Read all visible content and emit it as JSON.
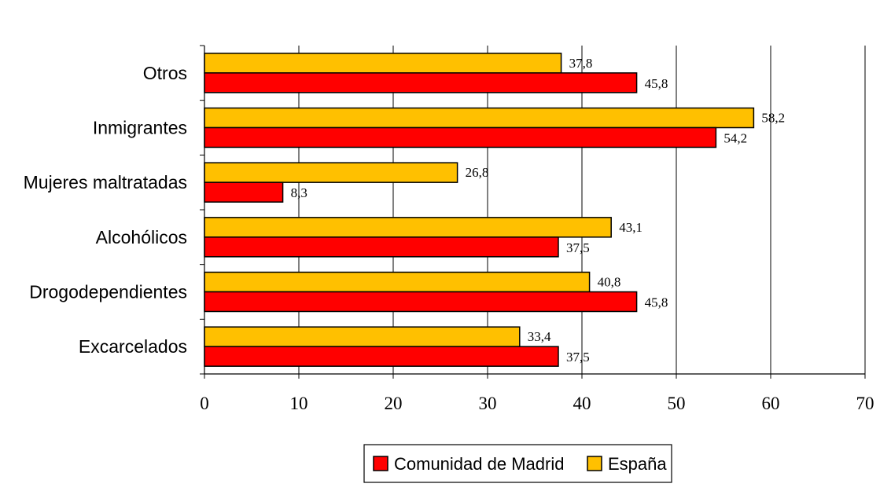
{
  "chart_data": {
    "type": "bar",
    "orientation": "horizontal",
    "categories": [
      "Excarcelados",
      "Drogodependientes",
      "Alcohólicos",
      "Mujeres maltratadas",
      "Inmigrantes",
      "Otros"
    ],
    "series": [
      {
        "name": "Comunidad de Madrid",
        "color": "#FF0000",
        "values": [
          37.5,
          45.8,
          37.5,
          8.3,
          54.2,
          45.8
        ],
        "labels": [
          "37,5",
          "45,8",
          "37,5",
          "8,3",
          "54,2",
          "45,8"
        ]
      },
      {
        "name": "España",
        "color": "#FFC000",
        "values": [
          33.4,
          40.8,
          43.1,
          26.8,
          58.2,
          37.8
        ],
        "labels": [
          "33,4",
          "40,8",
          "43,1",
          "26,8",
          "58,2",
          "37,8"
        ]
      }
    ],
    "xlim": [
      0,
      70
    ],
    "xticks": [
      0,
      10,
      20,
      30,
      40,
      50,
      60,
      70
    ],
    "xtick_labels": [
      "0",
      "10",
      "20",
      "30",
      "40",
      "50",
      "60",
      "70"
    ],
    "title": "",
    "xlabel": "",
    "ylabel": "",
    "grid": "vertical major gridlines",
    "legend": "bottom-center"
  }
}
